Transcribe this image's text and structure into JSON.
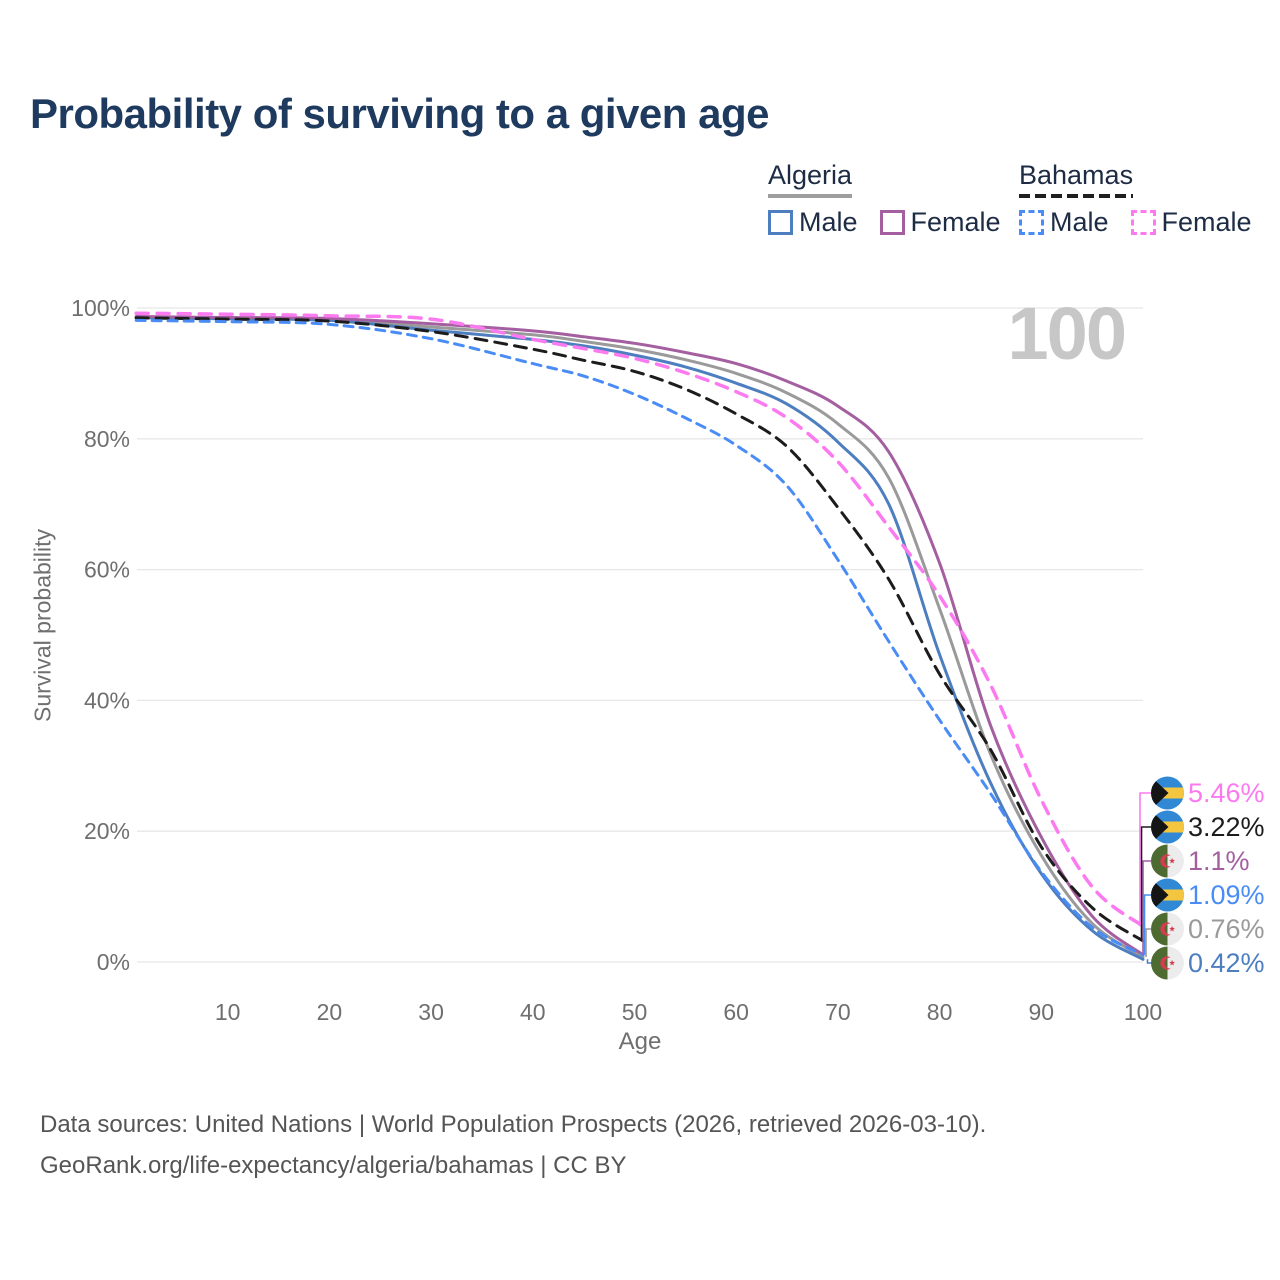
{
  "title": "Probability of surviving to a given age",
  "watermark_age": "100",
  "legend": {
    "groups": [
      {
        "country": "Algeria",
        "line_style": "solid",
        "underline_color": "#9e9e9e",
        "items": [
          {
            "label": "Male",
            "color": "#4d7ebf"
          },
          {
            "label": "Female",
            "color": "#a45fa0"
          }
        ]
      },
      {
        "country": "Bahamas",
        "line_style": "dashed",
        "underline_color": "#1f1f1f",
        "items": [
          {
            "label": "Male",
            "color": "#4a8cf6"
          },
          {
            "label": "Female",
            "color": "#fb7af0"
          }
        ]
      }
    ]
  },
  "chart_data": {
    "type": "line",
    "title": "Probability of surviving to a given age",
    "xlabel": "Age",
    "ylabel": "Survival probability",
    "xlim": [
      0,
      100
    ],
    "ylim": [
      0,
      100
    ],
    "x_ticks": [
      10,
      20,
      30,
      40,
      50,
      60,
      70,
      80,
      90,
      100
    ],
    "y_ticks": [
      0,
      20,
      40,
      60,
      80,
      100
    ],
    "y_tick_labels": [
      "0%",
      "20%",
      "40%",
      "60%",
      "80%",
      "100%"
    ],
    "grid": "horizontal",
    "legend_position": "top-right",
    "hover_age": "100",
    "ages": [
      1,
      10,
      20,
      30,
      40,
      45,
      50,
      55,
      60,
      65,
      70,
      75,
      80,
      85,
      90,
      95,
      100
    ],
    "series": [
      {
        "name": "Algeria",
        "flag": "algeria",
        "color": "#9a9a9a",
        "dash": "solid",
        "width": 3,
        "end_label": "0.76%",
        "end_value": 0.76,
        "values": [
          98.6,
          98.45,
          98.25,
          97.1,
          95.9,
          94.9,
          93.7,
          92.1,
          90.0,
          87.0,
          82.3,
          74.0,
          54.0,
          31.8,
          16.3,
          5.9,
          0.76
        ]
      },
      {
        "name": "Algeria Male",
        "flag": "algeria",
        "color": "#4d7ebf",
        "dash": "solid",
        "width": 3,
        "end_label": "0.42%",
        "end_value": 0.42,
        "values": [
          98.5,
          98.35,
          98.1,
          96.6,
          95.2,
          94.2,
          92.8,
          91.0,
          88.5,
          85.3,
          79.5,
          70.0,
          47.0,
          27.4,
          13.5,
          4.8,
          0.42
        ]
      },
      {
        "name": "Algeria Female",
        "flag": "algeria",
        "color": "#a45fa0",
        "dash": "solid",
        "width": 3,
        "end_label": "1.1%",
        "end_value": 1.1,
        "values": [
          98.7,
          98.55,
          98.4,
          97.6,
          96.5,
          95.6,
          94.6,
          93.2,
          91.5,
          88.8,
          85.0,
          78.0,
          61.0,
          36.2,
          19.1,
          7.0,
          1.1
        ]
      },
      {
        "name": "Bahamas",
        "flag": "bahamas",
        "color": "#1c1c1c",
        "dash": "12 8",
        "width": 3,
        "end_label": "3.22%",
        "end_value": 3.22,
        "values": [
          98.5,
          98.3,
          98.0,
          96.4,
          93.7,
          92.0,
          90.3,
          87.6,
          83.8,
          78.8,
          69.5,
          58.5,
          44.0,
          32.5,
          17.6,
          8.3,
          3.22
        ]
      },
      {
        "name": "Bahamas Male",
        "flag": "bahamas",
        "color": "#4a8cf6",
        "dash": "9 7",
        "width": 3,
        "end_label": "1.09%",
        "end_value": 1.09,
        "values": [
          98.1,
          97.9,
          97.5,
          95.3,
          91.5,
          89.6,
          86.8,
          83.2,
          79.0,
          72.8,
          61.5,
          49.0,
          37.0,
          25.8,
          13.8,
          5.3,
          1.09
        ]
      },
      {
        "name": "Bahamas Female",
        "flag": "bahamas",
        "color": "#fb7af0",
        "dash": "12 9",
        "width": 3.5,
        "end_label": "5.46%",
        "end_value": 5.46,
        "values": [
          99.2,
          99.05,
          98.8,
          98.3,
          95.2,
          93.8,
          92.3,
          90.1,
          87.2,
          83.2,
          76.5,
          66.5,
          56.0,
          42.4,
          24.8,
          11.5,
          5.46
        ]
      }
    ]
  },
  "footer": {
    "line1": "Data sources: United Nations | World Population Prospects (2026, retrieved 2026-03-10).",
    "line2": "GeoRank.org/life-expectancy/algeria/bahamas | CC BY"
  }
}
